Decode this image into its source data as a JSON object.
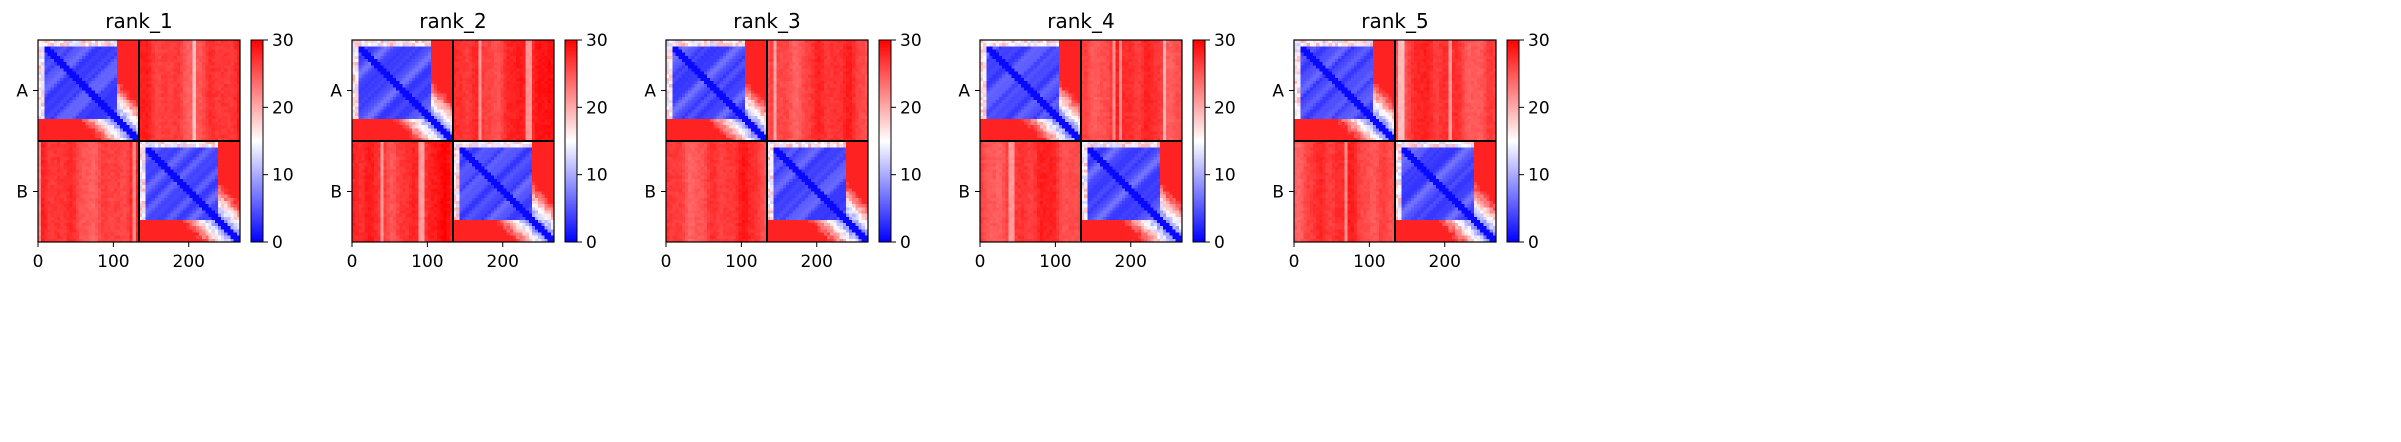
{
  "figure": {
    "colors": {
      "low": "#0000ff",
      "mid": "#ffffff",
      "high": "#ff0000",
      "axis": "#000000"
    }
  },
  "chart_data": [
    {
      "type": "heatmap",
      "title": "rank_1",
      "colormap": "bwr",
      "xlim": [
        0,
        268
      ],
      "ylim": [
        268,
        0
      ],
      "xticks": [
        0,
        100,
        200
      ],
      "xlabel": "",
      "ylabel": "",
      "chain_boundary": 134,
      "chains": [
        {
          "label": "A",
          "center": 67
        },
        {
          "label": "B",
          "center": 201
        }
      ],
      "colorbar": {
        "range": [
          0,
          30
        ],
        "ticks": [
          0,
          10,
          20,
          30
        ]
      },
      "blocks": [
        {
          "rows": "A",
          "cols": "A",
          "approx_value": 3
        },
        {
          "rows": "A",
          "cols": "B",
          "approx_value": 27
        },
        {
          "rows": "B",
          "cols": "A",
          "approx_value": 27
        },
        {
          "rows": "B",
          "cols": "B",
          "approx_value": 3
        }
      ]
    },
    {
      "type": "heatmap",
      "title": "rank_2",
      "colormap": "bwr",
      "xlim": [
        0,
        268
      ],
      "ylim": [
        268,
        0
      ],
      "xticks": [
        0,
        100,
        200
      ],
      "xlabel": "",
      "ylabel": "",
      "chain_boundary": 134,
      "chains": [
        {
          "label": "A",
          "center": 67
        },
        {
          "label": "B",
          "center": 201
        }
      ],
      "colorbar": {
        "range": [
          0,
          30
        ],
        "ticks": [
          0,
          10,
          20,
          30
        ]
      },
      "blocks": [
        {
          "rows": "A",
          "cols": "A",
          "approx_value": 3
        },
        {
          "rows": "A",
          "cols": "B",
          "approx_value": 28
        },
        {
          "rows": "B",
          "cols": "A",
          "approx_value": 28
        },
        {
          "rows": "B",
          "cols": "B",
          "approx_value": 3
        }
      ]
    },
    {
      "type": "heatmap",
      "title": "rank_3",
      "colormap": "bwr",
      "xlim": [
        0,
        268
      ],
      "ylim": [
        268,
        0
      ],
      "xticks": [
        0,
        100,
        200
      ],
      "xlabel": "",
      "ylabel": "",
      "chain_boundary": 134,
      "chains": [
        {
          "label": "A",
          "center": 67
        },
        {
          "label": "B",
          "center": 201
        }
      ],
      "colorbar": {
        "range": [
          0,
          30
        ],
        "ticks": [
          0,
          10,
          20,
          30
        ]
      },
      "blocks": [
        {
          "rows": "A",
          "cols": "A",
          "approx_value": 3
        },
        {
          "rows": "A",
          "cols": "B",
          "approx_value": 27
        },
        {
          "rows": "B",
          "cols": "A",
          "approx_value": 27
        },
        {
          "rows": "B",
          "cols": "B",
          "approx_value": 3
        }
      ]
    },
    {
      "type": "heatmap",
      "title": "rank_4",
      "colormap": "bwr",
      "xlim": [
        0,
        268
      ],
      "ylim": [
        268,
        0
      ],
      "xticks": [
        0,
        100,
        200
      ],
      "xlabel": "",
      "ylabel": "",
      "chain_boundary": 134,
      "chains": [
        {
          "label": "A",
          "center": 67
        },
        {
          "label": "B",
          "center": 201
        }
      ],
      "colorbar": {
        "range": [
          0,
          30
        ],
        "ticks": [
          0,
          10,
          20,
          30
        ]
      },
      "blocks": [
        {
          "rows": "A",
          "cols": "A",
          "approx_value": 3
        },
        {
          "rows": "A",
          "cols": "B",
          "approx_value": 27
        },
        {
          "rows": "B",
          "cols": "A",
          "approx_value": 27
        },
        {
          "rows": "B",
          "cols": "B",
          "approx_value": 3
        }
      ]
    },
    {
      "type": "heatmap",
      "title": "rank_5",
      "colormap": "bwr",
      "xlim": [
        0,
        268
      ],
      "ylim": [
        268,
        0
      ],
      "xticks": [
        0,
        100,
        200
      ],
      "xlabel": "",
      "ylabel": "",
      "chain_boundary": 134,
      "chains": [
        {
          "label": "A",
          "center": 67
        },
        {
          "label": "B",
          "center": 201
        }
      ],
      "colorbar": {
        "range": [
          0,
          30
        ],
        "ticks": [
          0,
          10,
          20,
          30
        ]
      },
      "blocks": [
        {
          "rows": "A",
          "cols": "A",
          "approx_value": 3
        },
        {
          "rows": "A",
          "cols": "B",
          "approx_value": 27
        },
        {
          "rows": "B",
          "cols": "A",
          "approx_value": 27
        },
        {
          "rows": "B",
          "cols": "B",
          "approx_value": 3
        }
      ]
    }
  ]
}
